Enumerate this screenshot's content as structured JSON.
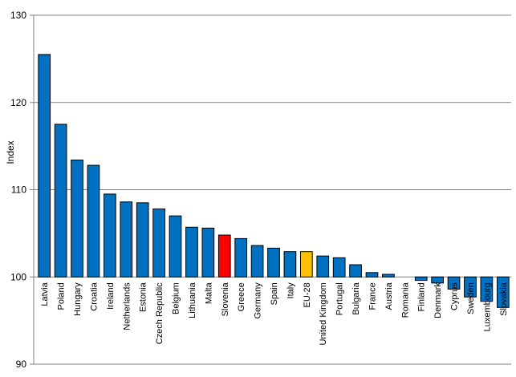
{
  "chart_data": {
    "type": "bar",
    "title": "",
    "xlabel": "",
    "ylabel": "Index",
    "ylim": [
      90,
      130
    ],
    "yticks": [
      90,
      100,
      110,
      120,
      130
    ],
    "grid": true,
    "baseline": 100,
    "colors": {
      "default": "#0070C0",
      "highlight": "#FF0000",
      "eu": "#FFC000",
      "grid": "#808080",
      "axis": "#808080",
      "bar_stroke": "#000000"
    },
    "categories": [
      "Latvia",
      "Poland",
      "Hungary",
      "Croatia",
      "Ireland",
      "Netherlands",
      "Estonia",
      "Czech Republic",
      "Belgium",
      "Lithuania",
      "Malta",
      "Slovenia",
      "Greece",
      "Germany",
      "Spain",
      "Italy",
      "EU-28",
      "United Kingdom",
      "Portugal",
      "Bulgaria",
      "France",
      "Austria",
      "Romania",
      "Finland",
      "Denmark",
      "Cyprus",
      "Sweden",
      "Luxembourg",
      "Slovakia"
    ],
    "values": [
      125.5,
      117.5,
      113.4,
      112.8,
      109.5,
      108.6,
      108.5,
      107.8,
      107.0,
      105.7,
      105.6,
      104.8,
      104.4,
      103.6,
      103.3,
      102.9,
      102.9,
      102.4,
      102.2,
      101.4,
      100.5,
      100.3,
      100.0,
      99.6,
      99.3,
      98.6,
      97.7,
      97.2,
      96.5
    ],
    "highlight": {
      "Slovenia": "highlight",
      "EU-28": "eu"
    }
  }
}
